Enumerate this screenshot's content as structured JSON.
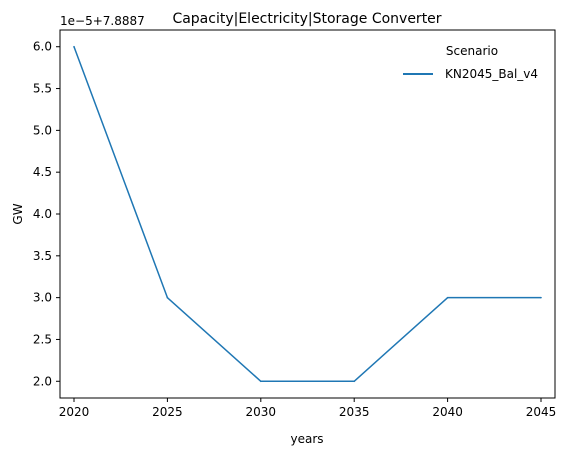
{
  "chart_data": {
    "type": "line",
    "title": "Capacity|Electricity|Storage Converter",
    "xlabel": "years",
    "ylabel": "GW",
    "offset_text": "1e−5+7.8887",
    "x": [
      2020,
      2025,
      2030,
      2035,
      2040,
      2045
    ],
    "x_ticks": [
      "2020",
      "2025",
      "2030",
      "2035",
      "2040",
      "2045"
    ],
    "y_ticks": [
      "2.0",
      "2.5",
      "3.0",
      "3.5",
      "4.0",
      "4.5",
      "5.0",
      "5.5",
      "6.0"
    ],
    "xlim": [
      2019.25,
      2045.75
    ],
    "ylim": [
      1.8,
      6.2
    ],
    "series": [
      {
        "name": "KN2045_Bal_v4",
        "color": "#1f77b4",
        "values": [
          6.0,
          3.0,
          2.0,
          2.0,
          3.0,
          3.0
        ]
      }
    ],
    "legend": {
      "title": "Scenario",
      "position": "top-right"
    },
    "grid": false
  }
}
